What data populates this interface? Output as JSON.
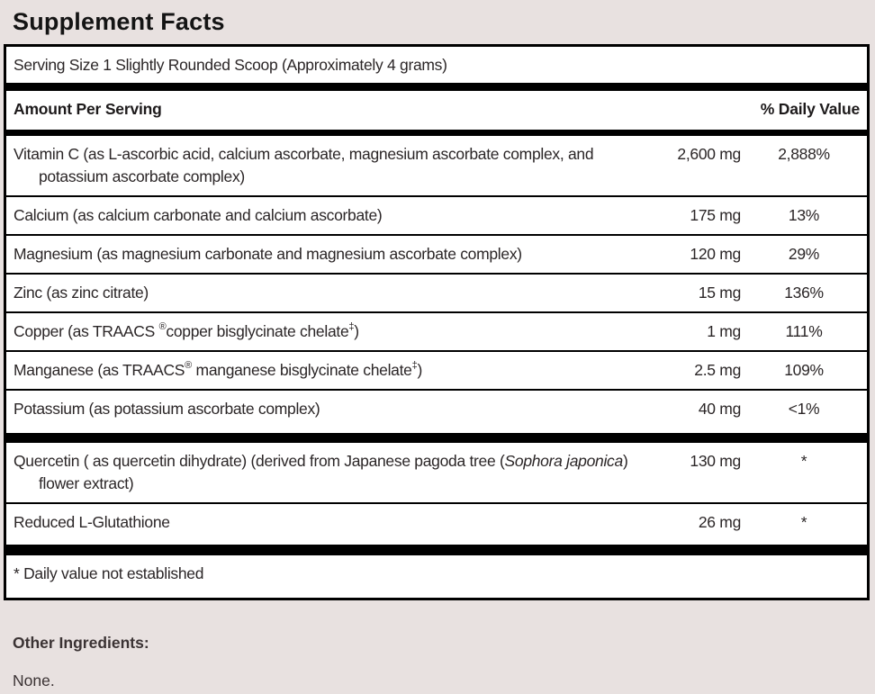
{
  "page": {
    "title": "Supplement Facts",
    "background_color": "#e8e1e0",
    "text_color": "#2b2627"
  },
  "panel": {
    "serving_size": "Serving Size 1 Slightly Rounded Scoop (Approximately 4 grams)",
    "header": {
      "amount_label": "Amount Per Serving",
      "daily_value_label": "% Daily Value"
    },
    "sections": [
      {
        "rows": [
          {
            "name_parts": [
              {
                "text": "Vitamin C (as L-ascorbic acid, calcium ascorbate, magnesium ascorbate complex, and potassium ascorbate complex)",
                "style": "normal"
              }
            ],
            "amount": "2,600 mg",
            "daily_value": "2,888%"
          },
          {
            "name_parts": [
              {
                "text": "Calcium (as calcium carbonate and calcium ascorbate)",
                "style": "normal"
              }
            ],
            "amount": "175 mg",
            "daily_value": "13%"
          },
          {
            "name_parts": [
              {
                "text": "Magnesium (as magnesium carbonate and magnesium ascorbate complex)",
                "style": "normal"
              }
            ],
            "amount": "120 mg",
            "daily_value": "29%"
          },
          {
            "name_parts": [
              {
                "text": "Zinc (as zinc citrate)",
                "style": "normal"
              }
            ],
            "amount": "15 mg",
            "daily_value": "136%"
          },
          {
            "name_parts": [
              {
                "text": "Copper (as TRAACS ",
                "style": "normal"
              },
              {
                "text": "®",
                "style": "sup"
              },
              {
                "text": "copper bisglycinate chelate",
                "style": "normal"
              },
              {
                "text": "‡",
                "style": "sup"
              },
              {
                "text": ")",
                "style": "normal"
              }
            ],
            "amount": "1 mg",
            "daily_value": "111%"
          },
          {
            "name_parts": [
              {
                "text": "Manganese (as TRAACS",
                "style": "normal"
              },
              {
                "text": "®",
                "style": "sup"
              },
              {
                "text": " manganese bisglycinate chelate",
                "style": "normal"
              },
              {
                "text": "‡",
                "style": "sup"
              },
              {
                "text": ")",
                "style": "normal"
              }
            ],
            "amount": "2.5 mg",
            "daily_value": "109%"
          },
          {
            "name_parts": [
              {
                "text": "Potassium (as potassium ascorbate complex)",
                "style": "normal"
              }
            ],
            "amount": "40 mg",
            "daily_value": "<1%"
          }
        ]
      },
      {
        "rows": [
          {
            "name_parts": [
              {
                "text": "Quercetin ( as quercetin dihydrate) (derived from Japanese pagoda tree (",
                "style": "normal"
              },
              {
                "text": "Sophora japonica",
                "style": "italic"
              },
              {
                "text": ") flower extract)",
                "style": "normal"
              }
            ],
            "amount": "130 mg",
            "daily_value": "*"
          },
          {
            "name_parts": [
              {
                "text": "Reduced L-Glutathione",
                "style": "normal"
              }
            ],
            "amount": "26 mg",
            "daily_value": "*"
          }
        ]
      }
    ],
    "footnote": "* Daily value not established"
  },
  "other_ingredients": {
    "label": "Other Ingredients:",
    "value": "None."
  }
}
